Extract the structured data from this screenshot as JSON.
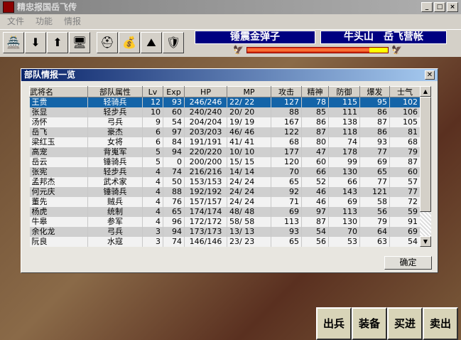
{
  "window": {
    "title": "精忠报国岳飞传",
    "buttons": [
      "_",
      "□",
      "×"
    ]
  },
  "menu": [
    "文件",
    "功能",
    "情报"
  ],
  "toolbar": {
    "icons": [
      "castle-icon",
      "scroll-down-icon",
      "scroll-up-icon",
      "computer-icon",
      "helmet-icon",
      "money-bag-icon",
      "mountain-icon",
      "armor-icon"
    ]
  },
  "status": {
    "item": "锤震金弹子",
    "location": "牛头山　岳飞营帐",
    "balance_percent": 87,
    "colors": {
      "left": "#e83818",
      "right": "#ffff00",
      "banner": "#000080"
    }
  },
  "dialog": {
    "title": "部队情报一览",
    "ok_label": "确定",
    "columns": [
      "武将名",
      "部队属性",
      "Lv",
      "Exp",
      "HP",
      "MP",
      "攻击",
      "精神",
      "防御",
      "爆发",
      "士气"
    ],
    "rows": [
      [
        "王贵",
        "轻骑兵",
        "12",
        "93",
        "246/246",
        "22/ 22",
        "127",
        "78",
        "115",
        "95",
        "102"
      ],
      [
        "张显",
        "轻步兵",
        "10",
        "60",
        "240/240",
        "20/ 20",
        "88",
        "85",
        "111",
        "86",
        "106"
      ],
      [
        "汤怀",
        "弓兵",
        "9",
        "54",
        "204/204",
        "19/ 19",
        "167",
        "86",
        "138",
        "87",
        "105"
      ],
      [
        "岳飞",
        "豪杰",
        "6",
        "97",
        "203/203",
        "46/ 46",
        "122",
        "87",
        "118",
        "86",
        "81"
      ],
      [
        "梁红玉",
        "女将",
        "6",
        "84",
        "191/191",
        "41/ 41",
        "68",
        "80",
        "74",
        "93",
        "68"
      ],
      [
        "高宠",
        "背嵬军",
        "5",
        "94",
        "220/220",
        "10/ 10",
        "177",
        "47",
        "178",
        "77",
        "79"
      ],
      [
        "岳云",
        "锤骑兵",
        "5",
        "0",
        "200/200",
        "15/ 15",
        "120",
        "60",
        "99",
        "69",
        "87"
      ],
      [
        "张宪",
        "轻步兵",
        "4",
        "74",
        "216/216",
        "14/ 14",
        "70",
        "66",
        "130",
        "65",
        "60"
      ],
      [
        "孟邦杰",
        "武术家",
        "4",
        "50",
        "153/153",
        "24/ 24",
        "65",
        "52",
        "66",
        "77",
        "57"
      ],
      [
        "何元庆",
        "锤骑兵",
        "4",
        "88",
        "192/192",
        "24/ 24",
        "92",
        "46",
        "143",
        "121",
        "77"
      ],
      [
        "董先",
        "贼兵",
        "4",
        "76",
        "157/157",
        "24/ 24",
        "71",
        "46",
        "69",
        "58",
        "72"
      ],
      [
        "杨虎",
        "统制",
        "4",
        "65",
        "174/174",
        "48/ 48",
        "69",
        "97",
        "113",
        "56",
        "59"
      ],
      [
        "牛皋",
        "参军",
        "4",
        "96",
        "172/172",
        "58/ 58",
        "113",
        "87",
        "130",
        "79",
        "91"
      ],
      [
        "余化龙",
        "弓兵",
        "3",
        "94",
        "173/173",
        "13/ 13",
        "93",
        "54",
        "70",
        "64",
        "69"
      ],
      [
        "阮良",
        "水寇",
        "3",
        "74",
        "146/146",
        "23/ 23",
        "65",
        "56",
        "53",
        "63",
        "54"
      ]
    ],
    "selected_row": 0
  },
  "commands": [
    "出兵",
    "装备",
    "买进",
    "卖出"
  ]
}
